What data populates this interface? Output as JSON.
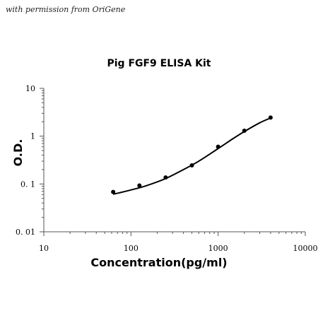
{
  "watermark": "with permission from OriGene",
  "chart_data": {
    "type": "scatter",
    "title": "Pig FGF9 ELISA Kit",
    "xlabel": "Concentration(pg/ml)",
    "ylabel": "O.D.",
    "x_scale": "log",
    "y_scale": "log",
    "xlim": [
      10,
      10000
    ],
    "ylim": [
      0.01,
      10
    ],
    "x_ticks": [
      "10",
      "100",
      "1000",
      "10000"
    ],
    "y_ticks": [
      "0. 01",
      "0. 1",
      "1",
      "10"
    ],
    "grid": false,
    "series": [
      {
        "points": [
          {
            "x": 62.5,
            "y": 0.068
          },
          {
            "x": 125,
            "y": 0.093
          },
          {
            "x": 250,
            "y": 0.137
          },
          {
            "x": 500,
            "y": 0.245
          },
          {
            "x": 1000,
            "y": 0.6
          },
          {
            "x": 2000,
            "y": 1.3
          },
          {
            "x": 4000,
            "y": 2.45
          }
        ],
        "fit_curve": [
          {
            "x": 62.5,
            "y": 0.061
          },
          {
            "x": 100,
            "y": 0.075
          },
          {
            "x": 150,
            "y": 0.092
          },
          {
            "x": 250,
            "y": 0.13
          },
          {
            "x": 400,
            "y": 0.2
          },
          {
            "x": 600,
            "y": 0.3
          },
          {
            "x": 1000,
            "y": 0.55
          },
          {
            "x": 1500,
            "y": 0.9
          },
          {
            "x": 2000,
            "y": 1.25
          },
          {
            "x": 3000,
            "y": 1.9
          },
          {
            "x": 4000,
            "y": 2.4
          }
        ]
      }
    ]
  }
}
